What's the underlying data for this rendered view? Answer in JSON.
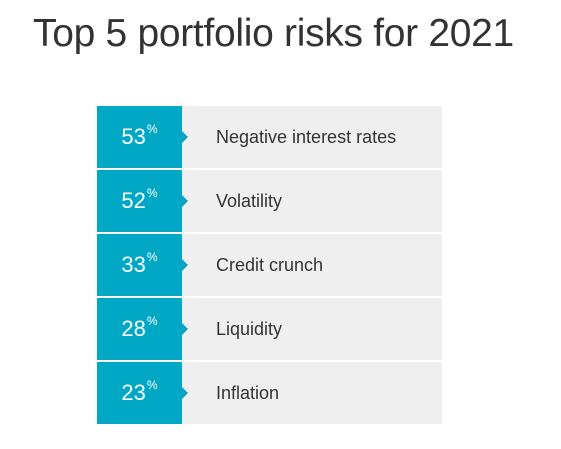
{
  "chart_data": {
    "type": "table",
    "title": "Top 5 portfolio risks for 2021",
    "unit": "%",
    "colors": {
      "accent": "#00a8c6",
      "row_background": "#efefef",
      "text": "#333333"
    },
    "rows": [
      {
        "value": "53",
        "label": "Negative interest rates"
      },
      {
        "value": "52",
        "label": "Volatility"
      },
      {
        "value": "33",
        "label": "Credit crunch"
      },
      {
        "value": "28",
        "label": "Liquidity"
      },
      {
        "value": "23",
        "label": "Inflation"
      }
    ]
  }
}
